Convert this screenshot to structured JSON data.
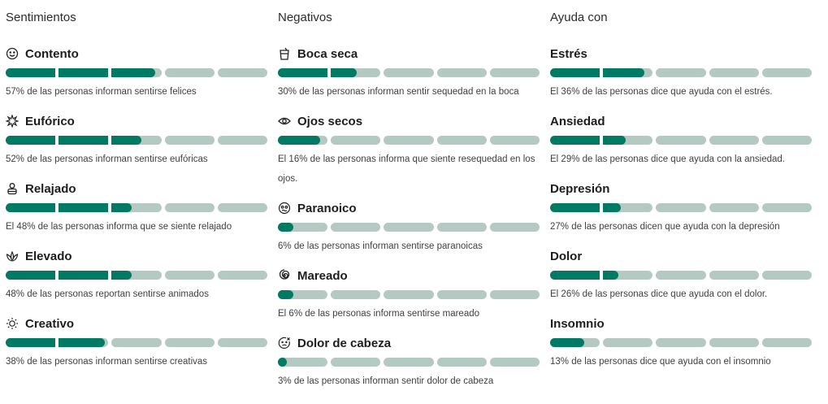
{
  "columns": [
    {
      "title": "Sentimientos",
      "items": [
        {
          "icon": "smile-icon",
          "name": "Contento",
          "percent": 57,
          "desc": "57% de las personas informan sentirse felices"
        },
        {
          "icon": "sparkle-burst-icon",
          "name": "Eufórico",
          "percent": 52,
          "desc": "52% de las personas informan sentirse eufóricas"
        },
        {
          "icon": "relaxed-figure-icon",
          "name": "Relajado",
          "percent": 48,
          "desc": "El 48% de las personas informa que se siente relajado"
        },
        {
          "icon": "leaves-icon",
          "name": "Elevado",
          "percent": 48,
          "desc": "48% de las personas reportan sentirse animados"
        },
        {
          "icon": "lightbulb-icon",
          "name": "Creativo",
          "percent": 38,
          "desc": "38% de las personas informan sentirse creativas"
        }
      ]
    },
    {
      "title": "Negativos",
      "items": [
        {
          "icon": "cup-icon",
          "name": "Boca seca",
          "percent": 30,
          "desc": "30% de las personas informan sentir sequedad en la boca"
        },
        {
          "icon": "eye-icon",
          "name": "Ojos secos",
          "percent": 16,
          "desc": "El 16% de las personas informa que siente resequedad en los ojos."
        },
        {
          "icon": "paranoid-face-icon",
          "name": "Paranoico",
          "percent": 6,
          "desc": "6% de las personas informan sentirse paranoicas"
        },
        {
          "icon": "spiral-icon",
          "name": "Mareado",
          "percent": 6,
          "desc": "El 6% de las personas informa sentirse mareado"
        },
        {
          "icon": "headache-face-icon",
          "name": "Dolor de cabeza",
          "percent": 3,
          "desc": "3% de las personas informan sentir dolor de cabeza"
        }
      ]
    },
    {
      "title": "Ayuda con",
      "items": [
        {
          "icon": "",
          "name": "Estrés",
          "percent": 36,
          "desc": "El 36% de las personas dice que ayuda con el estrés."
        },
        {
          "icon": "",
          "name": "Ansiedad",
          "percent": 29,
          "desc": "El 29% de las personas dice que ayuda con la ansiedad."
        },
        {
          "icon": "",
          "name": "Depresión",
          "percent": 27,
          "desc": "27% de las personas dicen que ayuda con la depresión"
        },
        {
          "icon": "",
          "name": "Dolor",
          "percent": 26,
          "desc": "El 26% de las personas dice que ayuda con el dolor."
        },
        {
          "icon": "",
          "name": "Insomnio",
          "percent": 13,
          "desc": "13% de las personas dice que ayuda con el insomnio"
        }
      ]
    }
  ],
  "colors": {
    "fill": "#007a62",
    "track": "#b3c9c1"
  }
}
